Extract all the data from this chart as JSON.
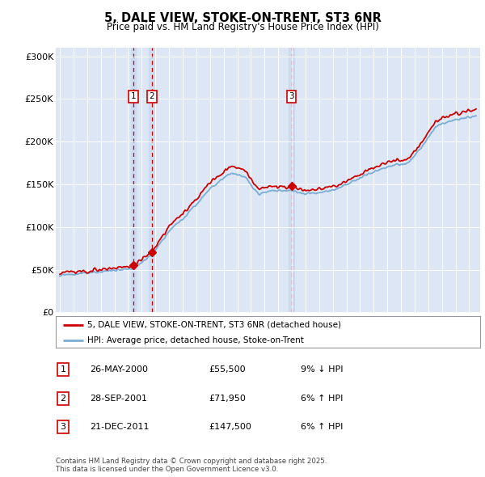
{
  "title": "5, DALE VIEW, STOKE-ON-TRENT, ST3 6NR",
  "subtitle": "Price paid vs. HM Land Registry's House Price Index (HPI)",
  "ylim": [
    0,
    310000
  ],
  "yticks": [
    0,
    50000,
    100000,
    150000,
    200000,
    250000,
    300000
  ],
  "ytick_labels": [
    "£0",
    "£50K",
    "£100K",
    "£150K",
    "£200K",
    "£250K",
    "£300K"
  ],
  "background_color": "#dce6f5",
  "sale_dates": [
    2000.39,
    2001.74,
    2011.97
  ],
  "sale_prices": [
    55500,
    71950,
    147500
  ],
  "sale_labels": [
    "1",
    "2",
    "3"
  ],
  "legend_line1": "5, DALE VIEW, STOKE-ON-TRENT, ST3 6NR (detached house)",
  "legend_line2": "HPI: Average price, detached house, Stoke-on-Trent",
  "table_rows": [
    [
      "1",
      "26-MAY-2000",
      "£55,500",
      "9% ↓ HPI"
    ],
    [
      "2",
      "28-SEP-2001",
      "£71,950",
      "6% ↑ HPI"
    ],
    [
      "3",
      "21-DEC-2011",
      "£147,500",
      "6% ↑ HPI"
    ]
  ],
  "footer": "Contains HM Land Registry data © Crown copyright and database right 2025.\nThis data is licensed under the Open Government Licence v3.0.",
  "hpi_color": "#7aadd4",
  "sale_color": "#cc0000",
  "dashed_line_color": "#cc0000",
  "xmin": 1994.7,
  "xmax": 2025.8
}
